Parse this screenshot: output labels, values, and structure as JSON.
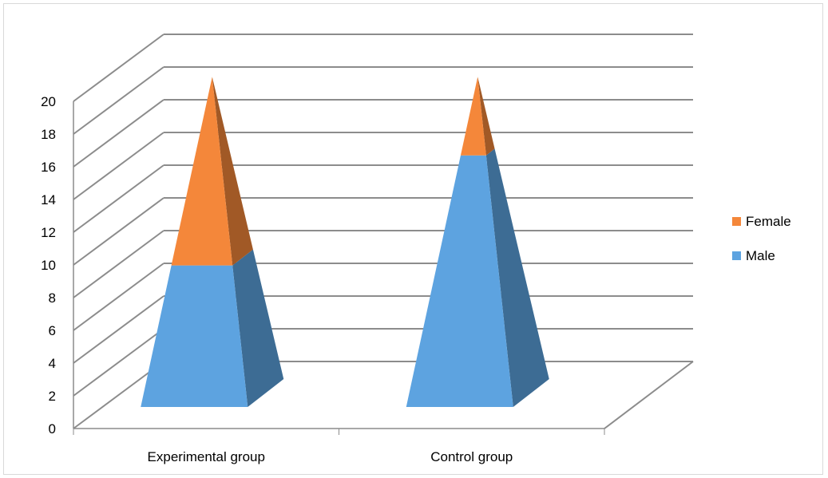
{
  "chart_data": {
    "type": "bar",
    "shape": "3d-pyramid-stacked",
    "categories": [
      "Experimental group",
      "Control group"
    ],
    "series": [
      {
        "name": "Male",
        "values": [
          9,
          16
        ],
        "color": "#5da3e0"
      },
      {
        "name": "Female",
        "values": [
          12,
          5
        ],
        "color": "#f4873a"
      }
    ],
    "ylim": [
      0,
      20
    ],
    "yticks": [
      "0",
      "2",
      "4",
      "6",
      "8",
      "10",
      "12",
      "14",
      "16",
      "18",
      "20"
    ],
    "grid": true,
    "legend_position": "right"
  }
}
